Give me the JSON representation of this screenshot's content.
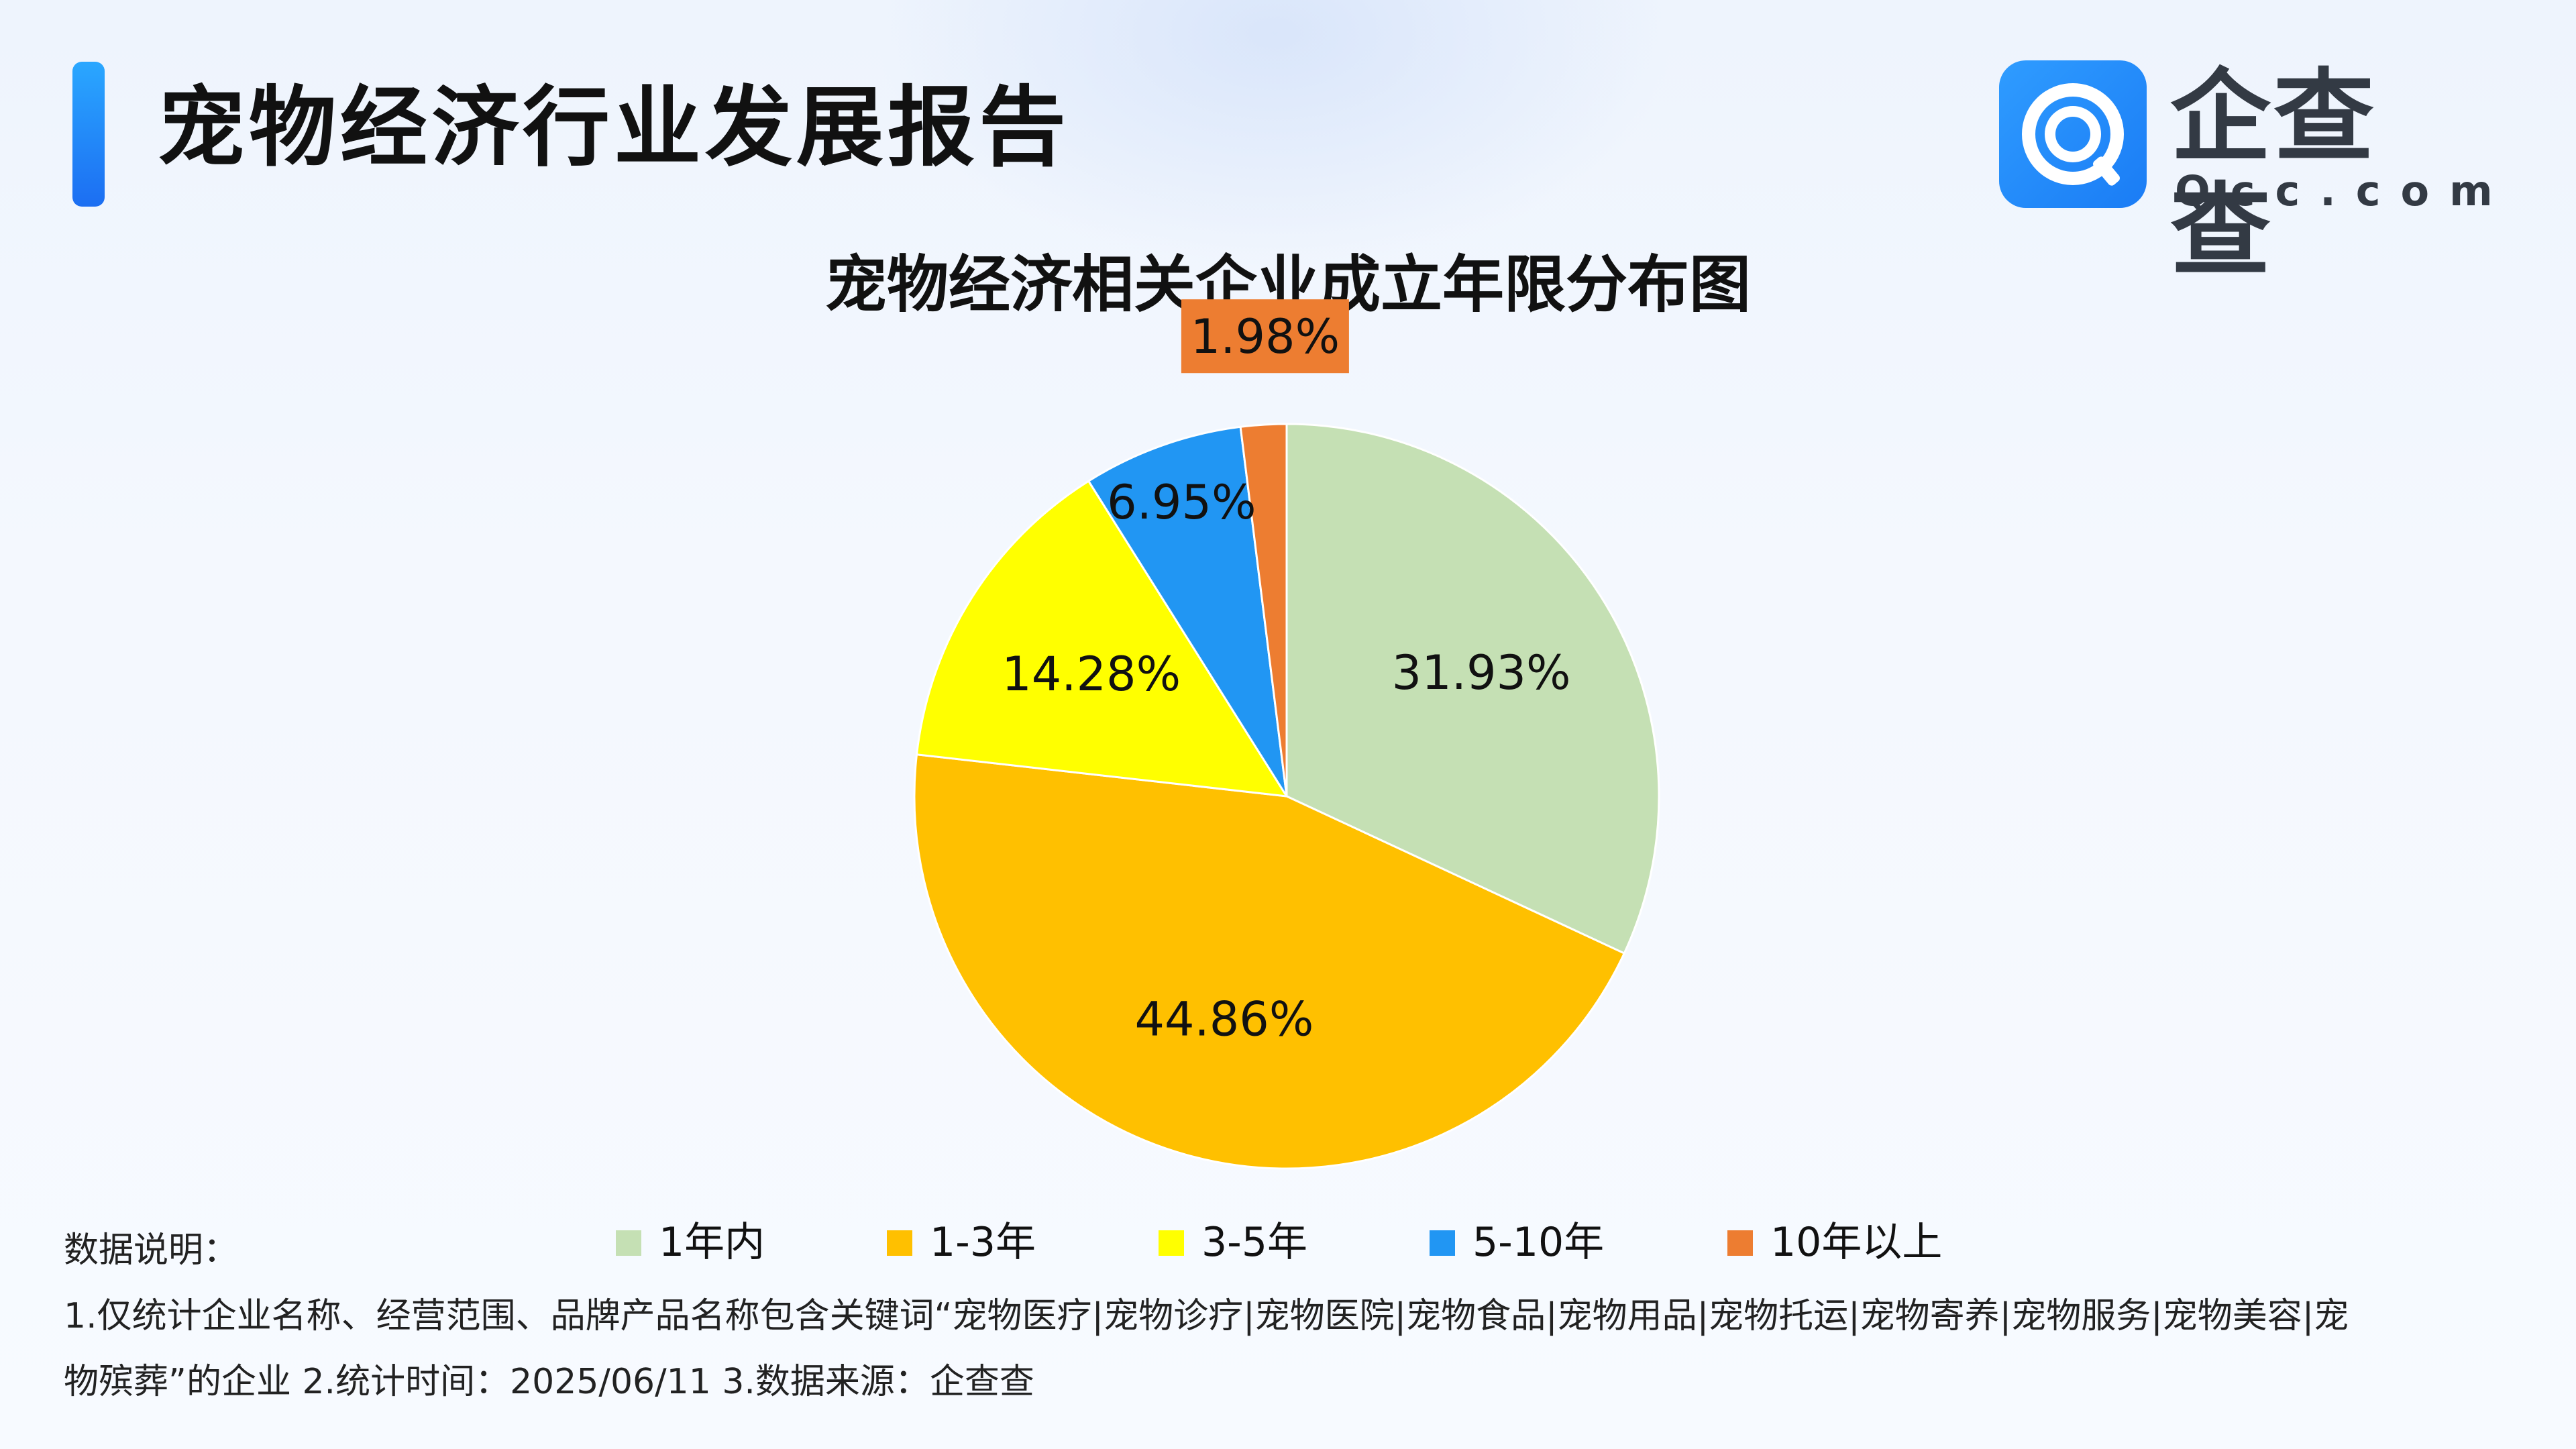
{
  "header": {
    "report_title": "宠物经济行业发展报告"
  },
  "brand": {
    "name": "企查查",
    "domain": "Qcc.com",
    "icon": "qcc-logo-icon",
    "color": "#1f8cfb"
  },
  "chart_data": {
    "type": "pie",
    "title": "宠物经济相关企业成立年限分布图",
    "categories": [
      "1年内",
      "1-3年",
      "3-5年",
      "5-10年",
      "10年以上"
    ],
    "values": [
      31.93,
      44.86,
      14.28,
      6.95,
      1.98
    ],
    "labels": [
      "31.93%",
      "44.86%",
      "14.28%",
      "6.95%",
      "1.98%"
    ],
    "colors": [
      "#c5e0b4",
      "#ffc000",
      "#ffff00",
      "#2196f3",
      "#ed7d31"
    ],
    "start_angle": "12 o'clock",
    "direction": "clockwise",
    "legend_position": "bottom"
  },
  "notes": {
    "heading": "数据说明：",
    "line1": "1.仅统计企业名称、经营范围、品牌产品名称包含关键词“宠物医疗|宠物诊疗|宠物医院|宠物食品|宠物用品|宠物托运|宠物寄养|宠物服务|宠物美容|宠",
    "line2": "物殡葬”的企业    2.统计时间：2025/06/11    3.数据来源：企查查"
  }
}
